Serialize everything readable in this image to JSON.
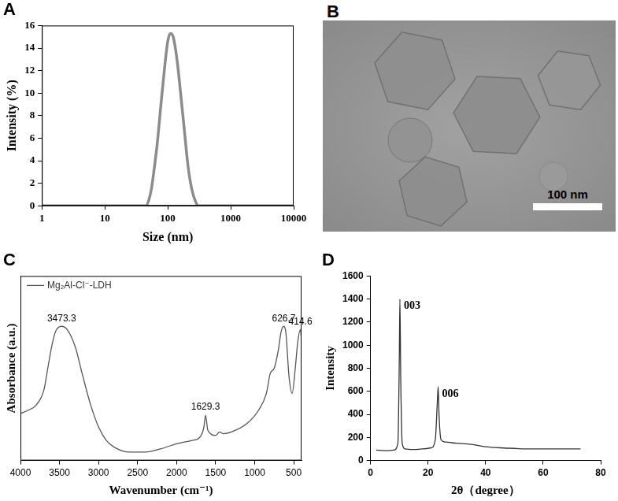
{
  "chart_data": [
    {
      "type": "line",
      "title": "A",
      "x_label": "Size (nm)",
      "y_label": "Intensity (%)",
      "log": "x",
      "grid": false,
      "xlim": [
        1,
        10000
      ],
      "xticks": [
        1,
        10,
        100,
        1000,
        10000
      ],
      "ylim": [
        0,
        16
      ],
      "yticks": [
        0,
        2,
        4,
        6,
        8,
        10,
        12,
        14,
        16
      ],
      "x": [
        1,
        40,
        45,
        50,
        55,
        60,
        68,
        78,
        90,
        100,
        110,
        122,
        140,
        160,
        185,
        210,
        240,
        280,
        310,
        10000
      ],
      "series": [
        {
          "color": "#8c8c8c",
          "values": [
            0,
            0,
            0,
            0.5,
            1.5,
            3,
            5.5,
            9,
            12.5,
            14.6,
            15.3,
            15,
            13,
            10,
            6.5,
            3.5,
            1.5,
            0.3,
            0,
            0
          ]
        }
      ]
    },
    {
      "type": "line",
      "title": "C",
      "x_label": "Wavenumber (cm⁻¹)",
      "y_label": "Absorbance (a.u.)",
      "grid": false,
      "tick_labels": "x",
      "legend": "upper left",
      "xlim": [
        4000,
        400
      ],
      "xticks": [
        4000,
        3500,
        3000,
        2500,
        2000,
        1500,
        1000,
        500
      ],
      "ylim": [
        0,
        1.1
      ],
      "x": [
        4000,
        3900,
        3800,
        3700,
        3650,
        3600,
        3550,
        3473.3,
        3400,
        3300,
        3200,
        3100,
        3000,
        2900,
        2800,
        2600,
        2400,
        2200,
        2000,
        1800,
        1700,
        1650,
        1629.3,
        1600,
        1500,
        1450,
        1400,
        1300,
        1100,
        950,
        850,
        800,
        750,
        700,
        660,
        626.7,
        600,
        560,
        520,
        480,
        450,
        414.6,
        400
      ],
      "series": [
        {
          "name": "Mg₂Al-Cl⁻-LDH",
          "color": "#555555",
          "values": [
            0.28,
            0.3,
            0.33,
            0.42,
            0.55,
            0.68,
            0.77,
            0.8,
            0.78,
            0.68,
            0.5,
            0.33,
            0.2,
            0.12,
            0.08,
            0.05,
            0.05,
            0.07,
            0.1,
            0.12,
            0.14,
            0.2,
            0.27,
            0.18,
            0.15,
            0.17,
            0.16,
            0.17,
            0.22,
            0.3,
            0.4,
            0.52,
            0.55,
            0.65,
            0.77,
            0.8,
            0.76,
            0.5,
            0.4,
            0.55,
            0.7,
            0.78,
            0.72
          ]
        }
      ],
      "annotations": [
        {
          "x": 3473.3,
          "y": 0.8,
          "text": "3473.3"
        },
        {
          "x": 1629.3,
          "y": 0.27,
          "text": "1629.3"
        },
        {
          "x": 626.7,
          "y": 0.8,
          "text": "626.7"
        },
        {
          "x": 414.6,
          "y": 0.78,
          "text": "414.6"
        }
      ]
    },
    {
      "type": "line",
      "title": "D",
      "x_label": "2θ（degree）",
      "y_label": "Intensity",
      "grid": false,
      "xlim": [
        0,
        80
      ],
      "xticks": [
        0,
        20,
        40,
        60,
        80
      ],
      "ylim": [
        0,
        1600
      ],
      "yticks": [
        0,
        200,
        400,
        600,
        800,
        1000,
        1200,
        1400,
        1600
      ],
      "x": [
        2,
        5,
        8,
        9.5,
        10,
        10.2,
        10.5,
        11,
        12,
        15,
        18,
        21,
        22.5,
        23.2,
        23.5,
        23.8,
        24.5,
        26,
        30,
        35,
        40,
        45,
        50,
        55,
        60,
        65,
        70,
        73
      ],
      "series": [
        {
          "color": "#333333",
          "values": [
            90,
            85,
            90,
            150,
            900,
            1400,
            700,
            150,
            100,
            95,
            100,
            110,
            180,
            500,
            640,
            400,
            180,
            160,
            150,
            140,
            120,
            110,
            105,
            100,
            100,
            100,
            100,
            100
          ]
        }
      ],
      "annotations": [
        {
          "x": 10.2,
          "y": 1400,
          "text": "003"
        },
        {
          "x": 23.5,
          "y": 640,
          "text": "006"
        }
      ]
    }
  ],
  "image": {
    "title": "B",
    "scale_bar": "100 nm"
  }
}
